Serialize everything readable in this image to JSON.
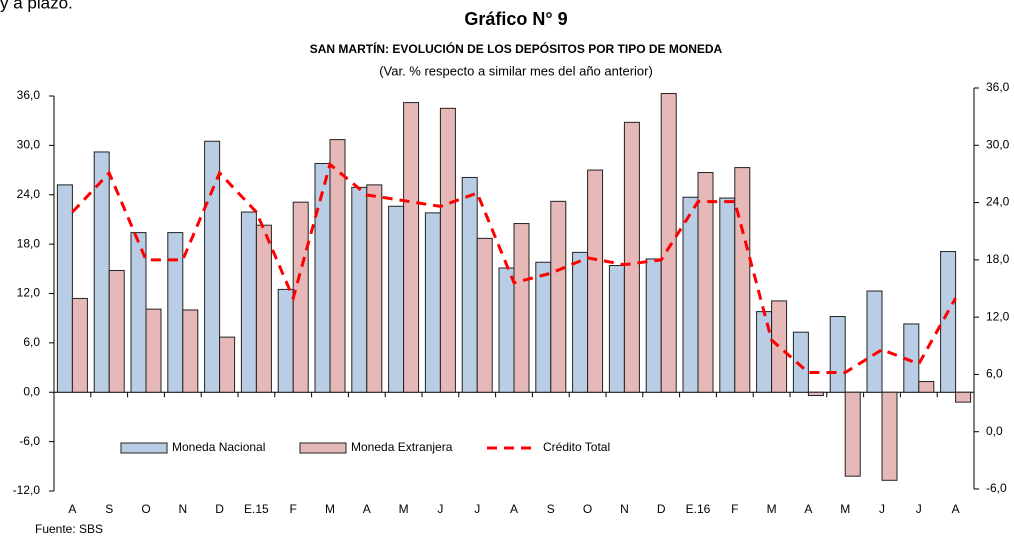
{
  "fragment_text": "y a plazo.",
  "chart_data": {
    "type": "bar",
    "title": "Gráfico N° 9",
    "subtitle": "SAN MARTÍN: EVOLUCIÓN DE LOS DEPÓSITOS POR TIPO DE MONEDA",
    "note": "(Var. % respecto a similar mes del año anterior)",
    "source": "Fuente: SBS",
    "categories": [
      "A",
      "S",
      "O",
      "N",
      "D",
      "E.15",
      "F",
      "M",
      "A",
      "M",
      "J",
      "J",
      "A",
      "S",
      "O",
      "N",
      "D",
      "E.16",
      "F",
      "M",
      "A",
      "M",
      "J",
      "J",
      "A"
    ],
    "series": [
      {
        "name": "Moneda Nacional",
        "type": "bar",
        "color": "#b9cde5",
        "axis": "y",
        "values": [
          25.2,
          29.2,
          19.4,
          19.4,
          30.5,
          21.9,
          12.5,
          27.8,
          24.9,
          22.6,
          21.8,
          26.1,
          15.1,
          15.8,
          17.0,
          15.4,
          16.2,
          23.7,
          23.6,
          9.8,
          7.3,
          9.2,
          12.3,
          8.3,
          17.1
        ]
      },
      {
        "name": "Moneda Extranjera",
        "type": "bar",
        "color": "#e6b9b8",
        "axis": "y",
        "values": [
          11.4,
          14.8,
          10.1,
          10.0,
          6.7,
          20.3,
          23.1,
          30.7,
          25.2,
          35.2,
          34.5,
          18.7,
          20.5,
          23.2,
          27.0,
          32.8,
          36.3,
          26.7,
          27.3,
          11.1,
          -0.4,
          -10.2,
          -10.7,
          1.3,
          -1.2
        ]
      },
      {
        "name": "Crédito Total",
        "type": "line",
        "color": "#ff0000",
        "axis": "y2",
        "values": [
          23.0,
          27.1,
          18.0,
          18.0,
          27.1,
          23.0,
          14.0,
          28.0,
          24.8,
          24.2,
          23.6,
          25.0,
          15.6,
          16.6,
          18.2,
          17.5,
          18.0,
          24.1,
          24.1,
          9.6,
          6.2,
          6.2,
          8.6,
          7.1,
          14.0
        ]
      }
    ],
    "ylim": [
      -12,
      36
    ],
    "yticks": [
      {
        "value": -12,
        "label": "-12,0"
      },
      {
        "value": -6,
        "label": "-6,0"
      },
      {
        "value": 0,
        "label": "0,0"
      },
      {
        "value": 6,
        "label": "6,0"
      },
      {
        "value": 12,
        "label": "12,0"
      },
      {
        "value": 18,
        "label": "18,0"
      },
      {
        "value": 24,
        "label": "24,0"
      },
      {
        "value": 30,
        "label": "30,0"
      },
      {
        "value": 36,
        "label": "36,0"
      }
    ],
    "y2lim": [
      -6,
      36
    ],
    "y2ticks": [
      {
        "value": -6,
        "label": "-6,0"
      },
      {
        "value": 0,
        "label": "0,0"
      },
      {
        "value": 6,
        "label": "6,0"
      },
      {
        "value": 12,
        "label": "12,0"
      },
      {
        "value": 18,
        "label": "18,0"
      },
      {
        "value": 24,
        "label": "24,0"
      },
      {
        "value": 30,
        "label": "30,0"
      },
      {
        "value": 36,
        "label": "36,0"
      }
    ],
    "grid": false
  }
}
